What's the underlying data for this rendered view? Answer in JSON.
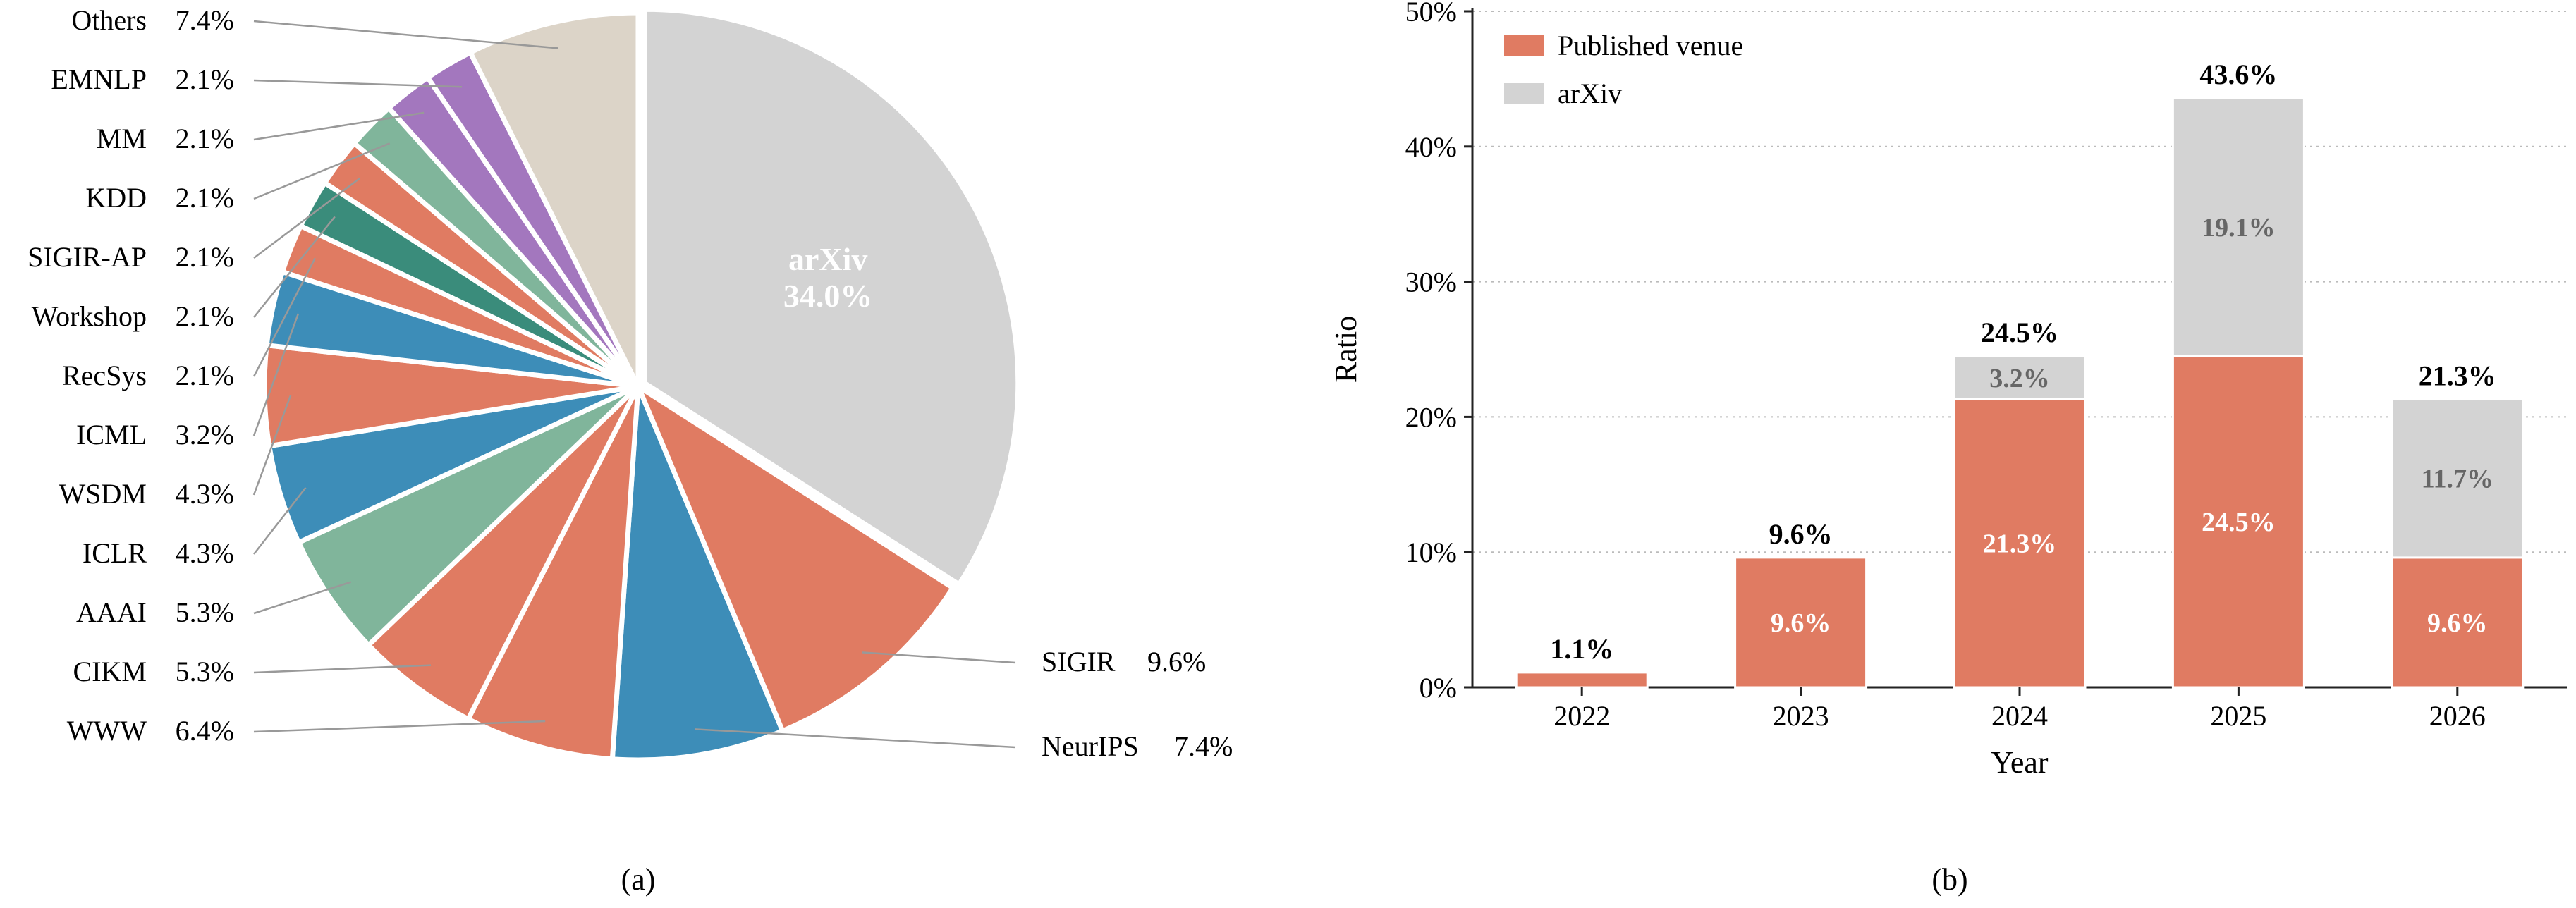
{
  "colors": {
    "arxiv": "#d3d3d3",
    "orange": "#e07b62",
    "blue": "#3d8db8",
    "green": "#80b59b",
    "teal": "#3a8c7b",
    "purple": "#a377be",
    "beige": "#dcd4c8",
    "leader": "#999999",
    "axis": "#222222",
    "grid": "#bbbbbb",
    "label_gray": "#666666",
    "label_white": "#ffffff"
  },
  "captions": {
    "a": "(a)",
    "b": "(b)"
  },
  "chart_data": [
    {
      "type": "pie",
      "start": "top, clockwise",
      "slices": [
        {
          "label": "arXiv",
          "value": 34.0,
          "display": "34.0%",
          "color": "arxiv",
          "inside": true
        },
        {
          "label": "SIGIR",
          "value": 9.6,
          "display": "9.6%",
          "color": "orange"
        },
        {
          "label": "NeurIPS",
          "value": 7.4,
          "display": "7.4%",
          "color": "blue"
        },
        {
          "label": "WWW",
          "value": 6.4,
          "display": "6.4%",
          "color": "orange"
        },
        {
          "label": "CIKM",
          "value": 5.3,
          "display": "5.3%",
          "color": "orange"
        },
        {
          "label": "AAAI",
          "value": 5.3,
          "display": "5.3%",
          "color": "green"
        },
        {
          "label": "ICLR",
          "value": 4.3,
          "display": "4.3%",
          "color": "blue"
        },
        {
          "label": "WSDM",
          "value": 4.3,
          "display": "4.3%",
          "color": "orange"
        },
        {
          "label": "ICML",
          "value": 3.2,
          "display": "3.2%",
          "color": "blue"
        },
        {
          "label": "RecSys",
          "value": 2.1,
          "display": "2.1%",
          "color": "orange"
        },
        {
          "label": "Workshop",
          "value": 2.1,
          "display": "2.1%",
          "color": "teal"
        },
        {
          "label": "SIGIR-AP",
          "value": 2.1,
          "display": "2.1%",
          "color": "orange"
        },
        {
          "label": "KDD",
          "value": 2.1,
          "display": "2.1%",
          "color": "green"
        },
        {
          "label": "MM",
          "value": 2.1,
          "display": "2.1%",
          "color": "purple"
        },
        {
          "label": "EMNLP",
          "value": 2.1,
          "display": "2.1%",
          "color": "purple"
        },
        {
          "label": "Others",
          "value": 7.4,
          "display": "7.4%",
          "color": "beige"
        }
      ]
    },
    {
      "type": "bar",
      "stacked": true,
      "xlabel": "Year",
      "ylabel": "Ratio",
      "ylim": [
        0,
        50
      ],
      "yticks": [
        0,
        10,
        20,
        30,
        40,
        50
      ],
      "ytick_labels": [
        "0%",
        "10%",
        "20%",
        "30%",
        "40%",
        "50%"
      ],
      "grid": "horizontal dotted",
      "legend": "top-left",
      "categories": [
        "2022",
        "2023",
        "2024",
        "2025",
        "2026"
      ],
      "series": [
        {
          "name": "Published venue",
          "color": "orange",
          "values": [
            1.1,
            9.6,
            21.3,
            24.5,
            9.6
          ],
          "labels": [
            "",
            "9.6%",
            "21.3%",
            "24.5%",
            "9.6%"
          ]
        },
        {
          "name": "arXiv",
          "color": "arxiv",
          "values": [
            0,
            0,
            3.2,
            19.1,
            11.7
          ],
          "labels": [
            "",
            "",
            "3.2%",
            "19.1%",
            "11.7%"
          ]
        }
      ],
      "totals": [
        1.1,
        9.6,
        24.5,
        43.6,
        21.3
      ],
      "total_labels": [
        "1.1%",
        "9.6%",
        "24.5%",
        "43.6%",
        "21.3%"
      ]
    }
  ]
}
